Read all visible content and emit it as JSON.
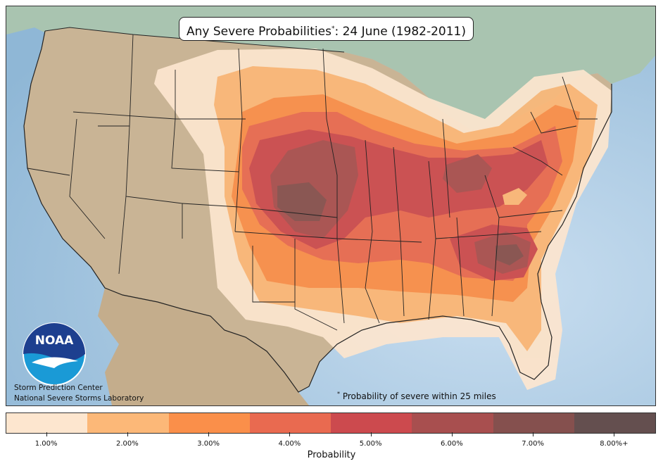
{
  "title": {
    "main": "Any Severe Probabilities",
    "marker": "*",
    "date": ": 24 June (1982-2011)"
  },
  "footnote": {
    "marker": "*",
    "text": "Probability of severe within 25 miles"
  },
  "credits": {
    "line1": "Storm Prediction Center",
    "line2": "National Severe Storms Laboratory"
  },
  "logo": {
    "text": "NOAA",
    "icon": "noaa-logo-icon"
  },
  "legend": {
    "label": "Probability",
    "ticks": [
      "1.00%",
      "2.00%",
      "3.00%",
      "4.00%",
      "5.00%",
      "6.00%",
      "7.00%",
      "8.00%+"
    ],
    "colors": [
      "#fde6cf",
      "#fcb878",
      "#fa8f4a",
      "#e96a50",
      "#cc4a4e",
      "#a84f4f",
      "#85504e",
      "#644f4f"
    ]
  },
  "map": {
    "ocean_color": "#a9cbe1",
    "land_color": "#c7b394",
    "canada_color": "#9fbfae"
  }
}
